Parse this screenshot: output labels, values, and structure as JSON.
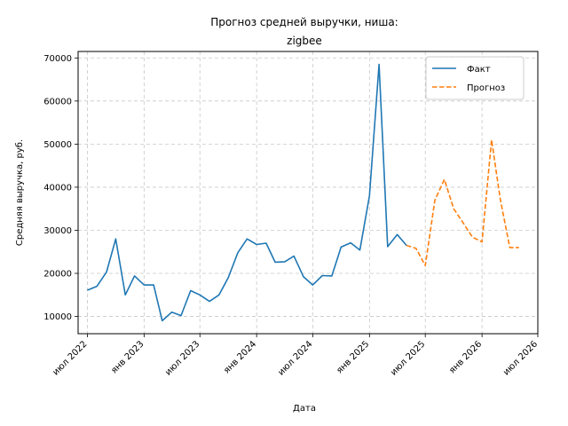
{
  "chart_data": {
    "type": "line",
    "title_lines": [
      "Прогноз средней выручки, ниша:",
      "zigbee"
    ],
    "xlabel": "Дата",
    "ylabel": "Средняя выручка, руб.",
    "ylim": [
      6000,
      71500
    ],
    "xlim": [
      "2022-06-01",
      "2026-07-01"
    ],
    "grid": true,
    "legend_position": "top-right",
    "y_ticks": [
      10000,
      20000,
      30000,
      40000,
      50000,
      60000,
      70000
    ],
    "y_tick_labels": [
      "10000",
      "20000",
      "30000",
      "40000",
      "50000",
      "60000",
      "70000"
    ],
    "x_ticks": [
      "2022-07-01",
      "2023-01-01",
      "2023-07-01",
      "2024-01-01",
      "2024-07-01",
      "2025-01-01",
      "2025-07-01",
      "2026-01-01",
      "2026-07-01"
    ],
    "x_tick_labels": [
      "июл 2022",
      "янв 2023",
      "июл 2023",
      "янв 2024",
      "июл 2024",
      "янв 2025",
      "июл 2025",
      "янв 2026",
      "июл 2026"
    ],
    "series": [
      {
        "name": "Факт",
        "color": "#1f77b4",
        "style": "solid",
        "x": [
          "2022-07-01",
          "2022-08-01",
          "2022-09-01",
          "2022-10-01",
          "2022-11-01",
          "2022-12-01",
          "2023-01-01",
          "2023-02-01",
          "2023-03-01",
          "2023-04-01",
          "2023-05-01",
          "2023-06-01",
          "2023-07-01",
          "2023-08-01",
          "2023-09-01",
          "2023-10-01",
          "2023-11-01",
          "2023-12-01",
          "2024-01-01",
          "2024-02-01",
          "2024-03-01",
          "2024-04-01",
          "2024-05-01",
          "2024-06-01",
          "2024-07-01",
          "2024-08-01",
          "2024-09-01",
          "2024-10-01",
          "2024-11-01",
          "2024-12-01",
          "2025-01-01",
          "2025-02-01",
          "2025-03-01",
          "2025-04-01",
          "2025-05-01"
        ],
        "values": [
          16100,
          17000,
          20300,
          28000,
          15000,
          19400,
          17300,
          17300,
          9000,
          11000,
          10200,
          16000,
          15000,
          13500,
          15000,
          19000,
          24800,
          28000,
          26700,
          27000,
          22600,
          22700,
          24000,
          19200,
          17300,
          19500,
          19400,
          26100,
          27100,
          25400,
          38000,
          68500,
          26200,
          29000,
          26500
        ]
      },
      {
        "name": "Прогноз",
        "color": "#ff7f0e",
        "style": "dashed",
        "x": [
          "2025-05-01",
          "2025-06-01",
          "2025-07-01",
          "2025-08-01",
          "2025-09-01",
          "2025-10-01",
          "2025-11-01",
          "2025-12-01",
          "2026-01-01",
          "2026-02-01",
          "2026-03-01",
          "2026-04-01",
          "2026-05-01"
        ],
        "values": [
          26500,
          25800,
          21800,
          37000,
          41800,
          35000,
          31700,
          28400,
          27300,
          51000,
          37300,
          26000,
          26000
        ]
      }
    ]
  }
}
